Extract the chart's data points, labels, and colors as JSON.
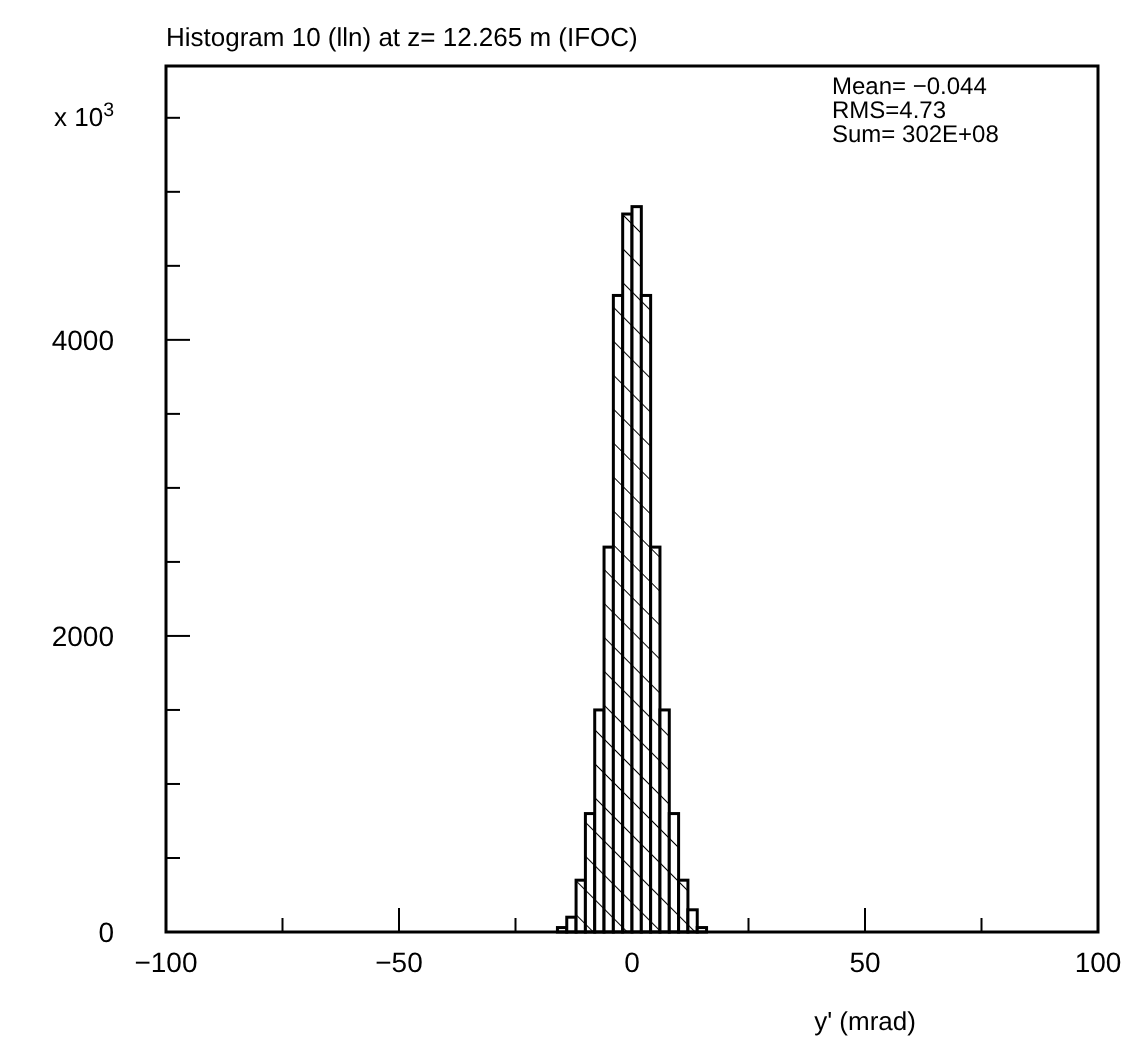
{
  "chart_data": {
    "type": "histogram",
    "title": "Histogram 10 (lln) at z= 12.265 m (IFOC)",
    "xlabel": "y' (mrad)",
    "ylabel": "x 10$^{3}$",
    "annotations": [
      "Mean= −0.044",
      "RMS=4.73",
      "Sum= 302E+08"
    ],
    "bins": [
      -16,
      -14,
      -12,
      -10,
      -8,
      -6,
      -4,
      -2,
      0,
      2,
      4,
      6,
      8,
      10,
      12,
      14,
      16
    ],
    "values": [
      30,
      100,
      350,
      800,
      1500,
      2600,
      4300,
      4850,
      4900,
      4300,
      2600,
      1500,
      800,
      350,
      150,
      30
    ],
    "color": "#000000",
    "xlim": [
      -100,
      100
    ],
    "xticks": [
      -100,
      {
        "value": -75,
        "label": null
      },
      -50,
      {
        "value": -25,
        "label": null
      },
      0,
      {
        "value": 25,
        "label": null
      },
      50,
      {
        "value": 75,
        "label": null
      },
      100
    ],
    "ylim": [
      0,
      5850
    ],
    "yticks": [
      0,
      {
        "value": 500,
        "label": null
      },
      {
        "value": 1000,
        "label": null
      },
      {
        "value": 1500,
        "label": null
      },
      2000,
      {
        "value": 2500,
        "label": null
      },
      {
        "value": 3000,
        "label": null
      },
      {
        "value": 3500,
        "label": null
      },
      4000,
      {
        "value": 4500,
        "label": null
      },
      {
        "value": 5000,
        "label": null
      },
      {
        "value": 5500,
        "label": null
      }
    ]
  }
}
